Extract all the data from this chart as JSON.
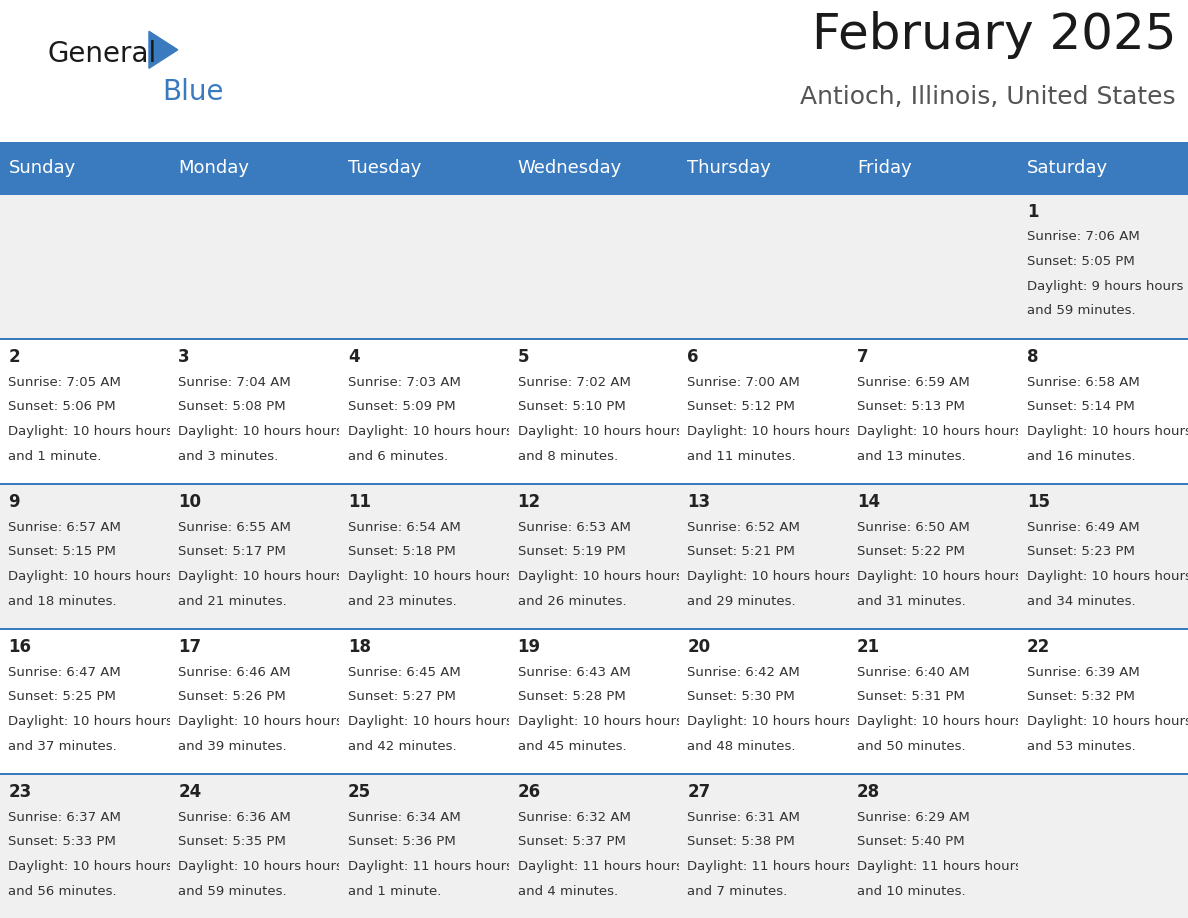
{
  "title": "February 2025",
  "subtitle": "Antioch, Illinois, United States",
  "header_bg": "#3a7bbf",
  "header_text": "#ffffff",
  "odd_row_bg": "#f0f0f0",
  "even_row_bg": "#ffffff",
  "border_color": "#3a7bbf",
  "days_of_week": [
    "Sunday",
    "Monday",
    "Tuesday",
    "Wednesday",
    "Thursday",
    "Friday",
    "Saturday"
  ],
  "calendar": [
    [
      {
        "day": "",
        "sunrise": "",
        "sunset": "",
        "daylight": ""
      },
      {
        "day": "",
        "sunrise": "",
        "sunset": "",
        "daylight": ""
      },
      {
        "day": "",
        "sunrise": "",
        "sunset": "",
        "daylight": ""
      },
      {
        "day": "",
        "sunrise": "",
        "sunset": "",
        "daylight": ""
      },
      {
        "day": "",
        "sunrise": "",
        "sunset": "",
        "daylight": ""
      },
      {
        "day": "",
        "sunrise": "",
        "sunset": "",
        "daylight": ""
      },
      {
        "day": "1",
        "sunrise": "7:06 AM",
        "sunset": "5:05 PM",
        "daylight": "9 hours and 59 minutes."
      }
    ],
    [
      {
        "day": "2",
        "sunrise": "7:05 AM",
        "sunset": "5:06 PM",
        "daylight": "10 hours and 1 minute."
      },
      {
        "day": "3",
        "sunrise": "7:04 AM",
        "sunset": "5:08 PM",
        "daylight": "10 hours and 3 minutes."
      },
      {
        "day": "4",
        "sunrise": "7:03 AM",
        "sunset": "5:09 PM",
        "daylight": "10 hours and 6 minutes."
      },
      {
        "day": "5",
        "sunrise": "7:02 AM",
        "sunset": "5:10 PM",
        "daylight": "10 hours and 8 minutes."
      },
      {
        "day": "6",
        "sunrise": "7:00 AM",
        "sunset": "5:12 PM",
        "daylight": "10 hours and 11 minutes."
      },
      {
        "day": "7",
        "sunrise": "6:59 AM",
        "sunset": "5:13 PM",
        "daylight": "10 hours and 13 minutes."
      },
      {
        "day": "8",
        "sunrise": "6:58 AM",
        "sunset": "5:14 PM",
        "daylight": "10 hours and 16 minutes."
      }
    ],
    [
      {
        "day": "9",
        "sunrise": "6:57 AM",
        "sunset": "5:15 PM",
        "daylight": "10 hours and 18 minutes."
      },
      {
        "day": "10",
        "sunrise": "6:55 AM",
        "sunset": "5:17 PM",
        "daylight": "10 hours and 21 minutes."
      },
      {
        "day": "11",
        "sunrise": "6:54 AM",
        "sunset": "5:18 PM",
        "daylight": "10 hours and 23 minutes."
      },
      {
        "day": "12",
        "sunrise": "6:53 AM",
        "sunset": "5:19 PM",
        "daylight": "10 hours and 26 minutes."
      },
      {
        "day": "13",
        "sunrise": "6:52 AM",
        "sunset": "5:21 PM",
        "daylight": "10 hours and 29 minutes."
      },
      {
        "day": "14",
        "sunrise": "6:50 AM",
        "sunset": "5:22 PM",
        "daylight": "10 hours and 31 minutes."
      },
      {
        "day": "15",
        "sunrise": "6:49 AM",
        "sunset": "5:23 PM",
        "daylight": "10 hours and 34 minutes."
      }
    ],
    [
      {
        "day": "16",
        "sunrise": "6:47 AM",
        "sunset": "5:25 PM",
        "daylight": "10 hours and 37 minutes."
      },
      {
        "day": "17",
        "sunrise": "6:46 AM",
        "sunset": "5:26 PM",
        "daylight": "10 hours and 39 minutes."
      },
      {
        "day": "18",
        "sunrise": "6:45 AM",
        "sunset": "5:27 PM",
        "daylight": "10 hours and 42 minutes."
      },
      {
        "day": "19",
        "sunrise": "6:43 AM",
        "sunset": "5:28 PM",
        "daylight": "10 hours and 45 minutes."
      },
      {
        "day": "20",
        "sunrise": "6:42 AM",
        "sunset": "5:30 PM",
        "daylight": "10 hours and 48 minutes."
      },
      {
        "day": "21",
        "sunrise": "6:40 AM",
        "sunset": "5:31 PM",
        "daylight": "10 hours and 50 minutes."
      },
      {
        "day": "22",
        "sunrise": "6:39 AM",
        "sunset": "5:32 PM",
        "daylight": "10 hours and 53 minutes."
      }
    ],
    [
      {
        "day": "23",
        "sunrise": "6:37 AM",
        "sunset": "5:33 PM",
        "daylight": "10 hours and 56 minutes."
      },
      {
        "day": "24",
        "sunrise": "6:36 AM",
        "sunset": "5:35 PM",
        "daylight": "10 hours and 59 minutes."
      },
      {
        "day": "25",
        "sunrise": "6:34 AM",
        "sunset": "5:36 PM",
        "daylight": "11 hours and 1 minute."
      },
      {
        "day": "26",
        "sunrise": "6:32 AM",
        "sunset": "5:37 PM",
        "daylight": "11 hours and 4 minutes."
      },
      {
        "day": "27",
        "sunrise": "6:31 AM",
        "sunset": "5:38 PM",
        "daylight": "11 hours and 7 minutes."
      },
      {
        "day": "28",
        "sunrise": "6:29 AM",
        "sunset": "5:40 PM",
        "daylight": "11 hours and 10 minutes."
      },
      {
        "day": "",
        "sunrise": "",
        "sunset": "",
        "daylight": ""
      }
    ]
  ],
  "title_fontsize": 36,
  "subtitle_fontsize": 18,
  "header_fontsize": 13,
  "day_number_fontsize": 12,
  "cell_text_fontsize": 9.5
}
